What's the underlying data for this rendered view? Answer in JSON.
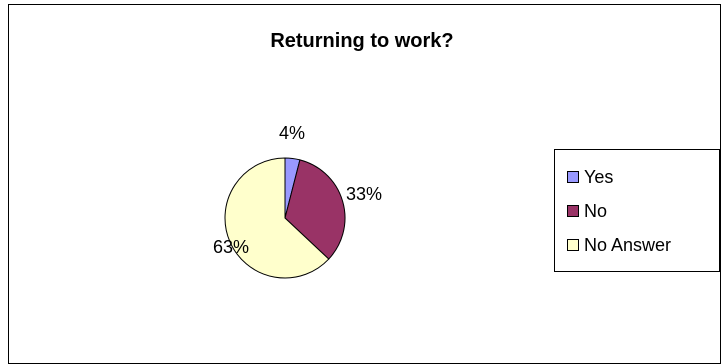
{
  "chart_data": {
    "type": "pie",
    "title": "Returning to work?",
    "categories": [
      "Yes",
      "No",
      "No Answer"
    ],
    "values": [
      4,
      33,
      63
    ],
    "labels": [
      "4%",
      "33%",
      "63%"
    ],
    "colors": [
      "#9999ff",
      "#993366",
      "#ffffcc"
    ],
    "legend_position": "right"
  }
}
